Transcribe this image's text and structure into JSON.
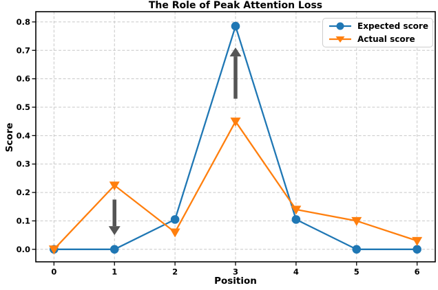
{
  "chart_data": {
    "type": "line",
    "title": "The Role of Peak Attention Loss",
    "xlabel": "Position",
    "ylabel": "Score",
    "x": [
      0,
      1,
      2,
      3,
      4,
      5,
      6
    ],
    "series": [
      {
        "name": "Expected score",
        "color": "#1f77b4",
        "marker": "circle",
        "values": [
          0.0,
          0.0,
          0.105,
          0.785,
          0.105,
          0.0,
          0.0
        ]
      },
      {
        "name": "Actual score",
        "color": "#ff7f0e",
        "marker": "triangle-down",
        "values": [
          0.0,
          0.225,
          0.06,
          0.45,
          0.14,
          0.1,
          0.03
        ]
      }
    ],
    "annotations": [
      {
        "type": "arrow",
        "x": 1,
        "from_y": 0.175,
        "to_y": 0.05,
        "direction": "down",
        "color": "#555555"
      },
      {
        "type": "arrow",
        "x": 3,
        "from_y": 0.53,
        "to_y": 0.71,
        "direction": "up",
        "color": "#555555"
      }
    ],
    "xticks": [
      "0",
      "1",
      "2",
      "3",
      "4",
      "5",
      "6"
    ],
    "yticks": [
      "0.0",
      "0.1",
      "0.2",
      "0.3",
      "0.4",
      "0.5",
      "0.6",
      "0.7",
      "0.8"
    ],
    "ytick_values": [
      0.0,
      0.1,
      0.2,
      0.3,
      0.4,
      0.5,
      0.6,
      0.7,
      0.8
    ],
    "xlim": [
      -0.3,
      6.3
    ],
    "ylim": [
      -0.044,
      0.836
    ],
    "grid": true,
    "grid_color": "#c7c7c7",
    "axis_color": "#000000",
    "legend_position": "upper right"
  }
}
